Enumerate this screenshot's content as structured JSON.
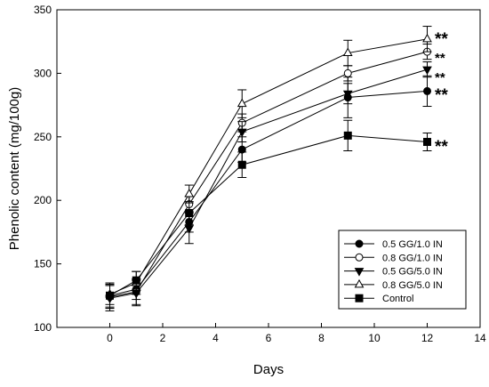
{
  "chart_data": {
    "type": "line",
    "title": "",
    "xlabel": "Days",
    "ylabel": "Phenolic content (mg/100g)",
    "xlim": [
      -2,
      14
    ],
    "ylim": [
      100,
      350
    ],
    "xticks": [
      0,
      2,
      4,
      6,
      8,
      10,
      12,
      14
    ],
    "yticks": [
      100,
      150,
      200,
      250,
      300,
      350
    ],
    "x": [
      0,
      1,
      3,
      5,
      9,
      12
    ],
    "grid": false,
    "legend_position": "bottom-right",
    "series": [
      {
        "name": "0.5 GG/1.0 IN",
        "marker": "filled-circle",
        "values": [
          125,
          130,
          183,
          240,
          281,
          286
        ],
        "errors": [
          10,
          8,
          8,
          10,
          16,
          12
        ],
        "significance": "**"
      },
      {
        "name": "0.8 GG/1.0 IN",
        "marker": "open-circle",
        "values": [
          124,
          128,
          197,
          261,
          300,
          317
        ],
        "errors": [
          9,
          10,
          6,
          7,
          6,
          6
        ],
        "significance": "**"
      },
      {
        "name": "0.5 GG/5.0 IN",
        "marker": "filled-triangle-down",
        "values": [
          123,
          127,
          178,
          254,
          284,
          303
        ],
        "errors": [
          10,
          10,
          12,
          8,
          8,
          6
        ],
        "significance": "**"
      },
      {
        "name": "0.8 GG/5.0 IN",
        "marker": "open-triangle-up",
        "values": [
          126,
          135,
          205,
          276,
          316,
          327
        ],
        "errors": [
          8,
          9,
          7,
          11,
          10,
          10
        ],
        "significance": "**"
      },
      {
        "name": "Control",
        "marker": "filled-square",
        "values": [
          125,
          137,
          190,
          228,
          251,
          246
        ],
        "errors": [
          9,
          7,
          9,
          10,
          12,
          7
        ],
        "significance": "**"
      }
    ]
  }
}
